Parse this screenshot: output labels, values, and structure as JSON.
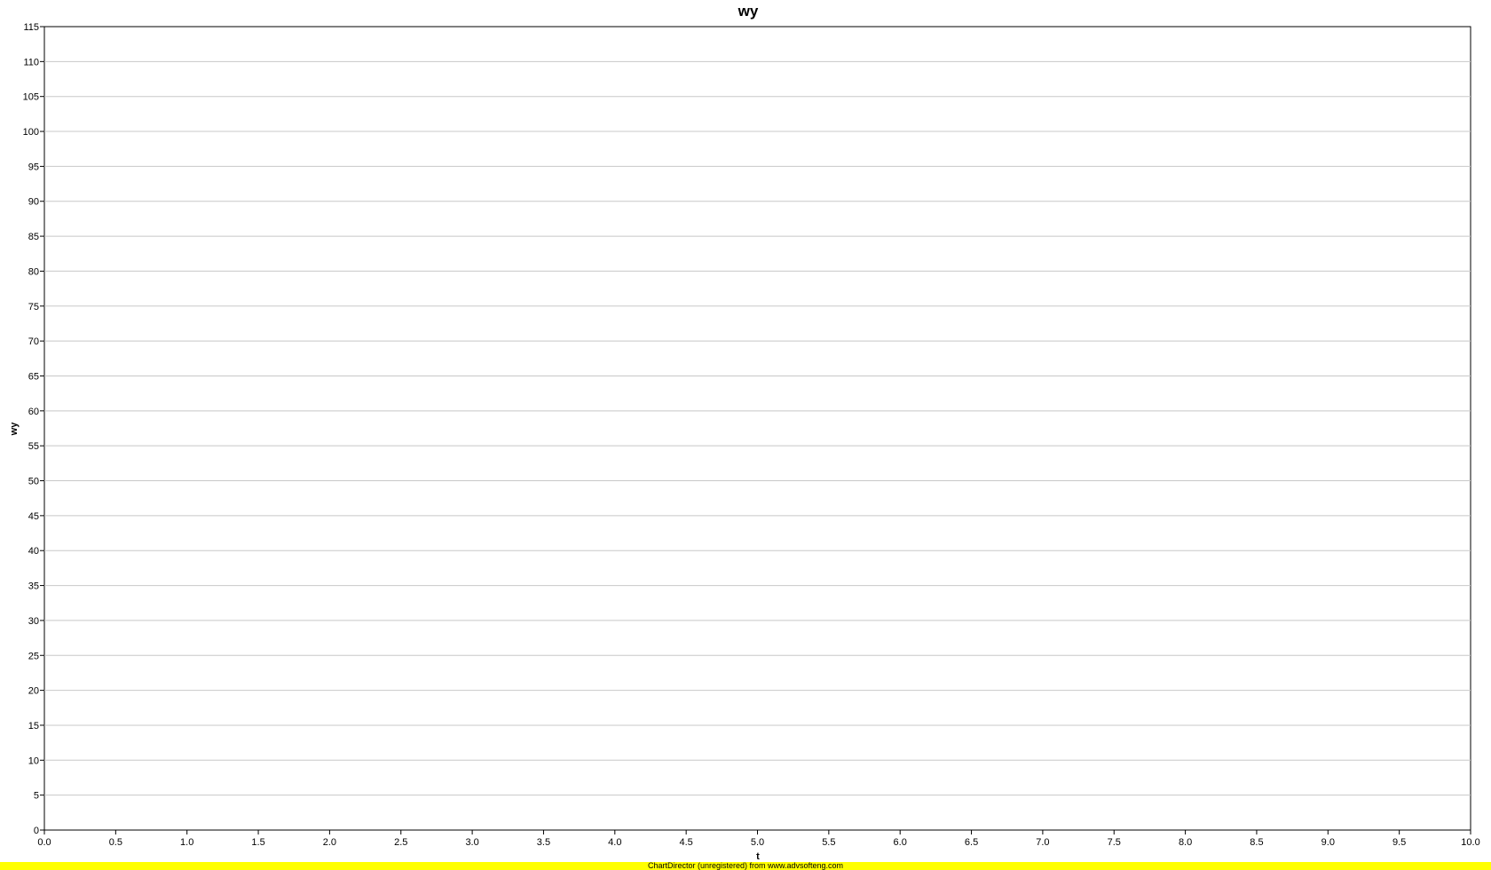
{
  "chart_data": {
    "type": "line",
    "title": "wy",
    "xlabel": "t",
    "ylabel": "wy",
    "xlim": [
      0,
      10
    ],
    "ylim": [
      0,
      115
    ],
    "x_ticks": [
      "0.0",
      "0.5",
      "1.0",
      "1.5",
      "2.0",
      "2.5",
      "3.0",
      "3.5",
      "4.0",
      "4.5",
      "5.0",
      "5.5",
      "6.0",
      "6.5",
      "7.0",
      "7.5",
      "8.0",
      "8.5",
      "9.0",
      "9.5",
      "10.0"
    ],
    "y_ticks": [
      "0",
      "5",
      "10",
      "15",
      "20",
      "25",
      "30",
      "35",
      "40",
      "45",
      "50",
      "55",
      "60",
      "65",
      "70",
      "75",
      "80",
      "85",
      "90",
      "95",
      "100",
      "105",
      "110",
      "115"
    ],
    "grid": "horizontal",
    "series": []
  },
  "footer": {
    "watermark": "ChartDirector (unregistered) from www.advsofteng.com"
  }
}
